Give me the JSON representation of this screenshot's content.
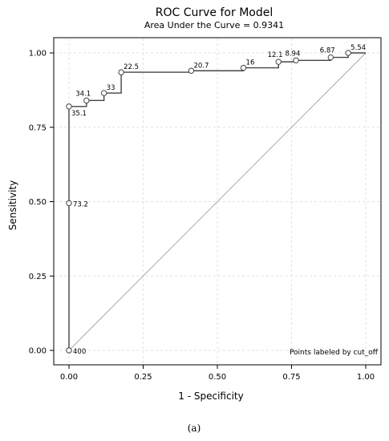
{
  "chart_data": {
    "type": "line",
    "title": "ROC Curve for Model",
    "subtitle": "Area Under the Curve = 0.9341",
    "xlabel": "1 - Specificity",
    "ylabel": "Sensitivity",
    "xlim": [
      0,
      1
    ],
    "ylim": [
      0,
      1
    ],
    "xticks": [
      "0.00",
      "0.25",
      "0.50",
      "0.75",
      "1.00"
    ],
    "yticks": [
      "0.00",
      "0.25",
      "0.50",
      "0.75",
      "1.00"
    ],
    "grid": true,
    "note": "Points labeled by cut_off",
    "roc_steps": [
      [
        0,
        0
      ],
      [
        0,
        0.82
      ],
      [
        0.059,
        0.82
      ],
      [
        0.059,
        0.84
      ],
      [
        0.118,
        0.84
      ],
      [
        0.118,
        0.865
      ],
      [
        0.176,
        0.865
      ],
      [
        0.176,
        0.935
      ],
      [
        0.412,
        0.935
      ],
      [
        0.412,
        0.94
      ],
      [
        0.588,
        0.94
      ],
      [
        0.588,
        0.95
      ],
      [
        0.706,
        0.95
      ],
      [
        0.706,
        0.97
      ],
      [
        0.765,
        0.97
      ],
      [
        0.765,
        0.975
      ],
      [
        0.882,
        0.975
      ],
      [
        0.882,
        0.985
      ],
      [
        0.941,
        0.985
      ],
      [
        0.941,
        1.0
      ],
      [
        1.0,
        1.0
      ]
    ],
    "labeled_points": [
      {
        "x": 0.0,
        "y": 0.0,
        "label": "400",
        "pos": "right"
      },
      {
        "x": 0.0,
        "y": 0.495,
        "label": "73.2",
        "pos": "right"
      },
      {
        "x": 0.0,
        "y": 0.82,
        "label": "35.1",
        "pos": "below-right"
      },
      {
        "x": 0.059,
        "y": 0.84,
        "label": "34.1",
        "pos": "above-left"
      },
      {
        "x": 0.118,
        "y": 0.865,
        "label": "33",
        "pos": "above-right"
      },
      {
        "x": 0.176,
        "y": 0.935,
        "label": "22.5",
        "pos": "above-right"
      },
      {
        "x": 0.412,
        "y": 0.94,
        "label": "20.7",
        "pos": "above-right"
      },
      {
        "x": 0.588,
        "y": 0.95,
        "label": "16",
        "pos": "above-right"
      },
      {
        "x": 0.706,
        "y": 0.97,
        "label": "12.1",
        "pos": "above-left"
      },
      {
        "x": 0.765,
        "y": 0.975,
        "label": "8.94",
        "pos": "above-left"
      },
      {
        "x": 0.882,
        "y": 0.985,
        "label": "6.87",
        "pos": "above-left"
      },
      {
        "x": 0.941,
        "y": 1.0,
        "label": "5.54",
        "pos": "above-right"
      }
    ],
    "reference_line": [
      [
        0,
        0
      ],
      [
        1,
        1
      ]
    ]
  },
  "caption": "(a)",
  "colors": {
    "curve": "#444444",
    "reference": "#aaaaaa",
    "grid": "#e2e2e2",
    "frame": "#000000"
  }
}
